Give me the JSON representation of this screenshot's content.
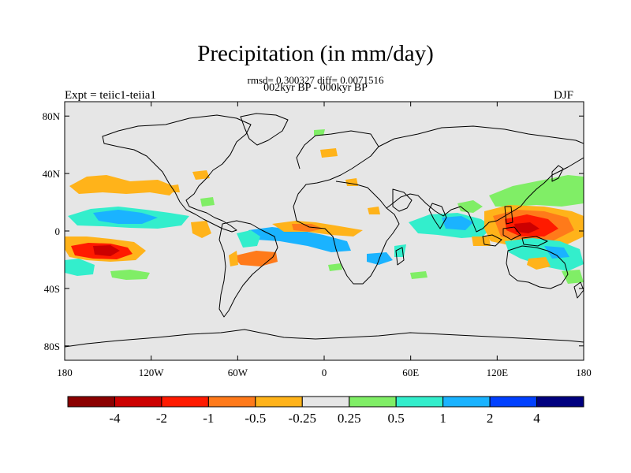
{
  "title": "Precipitation (in mm/day)",
  "stats": "rmsd= 0.300327 diff= 0.0071516",
  "period": "002kyr BP - 000kyr BP",
  "experiment": "Expt = teiic1-teiia1",
  "season": "DJF",
  "lon_ticks": [
    "180",
    "120W",
    "60W",
    "0",
    "60E",
    "120E",
    "180"
  ],
  "lat_ticks": [
    "80N",
    "40N",
    "0",
    "40S",
    "80S"
  ],
  "colorbar": {
    "colors": [
      "#8b0000",
      "#cc0000",
      "#ff1a00",
      "#ff7a1a",
      "#ffb31a",
      "#e6e6e6",
      "#80ee66",
      "#33eecc",
      "#1ab3ff",
      "#0040ff",
      "#00007f"
    ],
    "labels": [
      "-4",
      "-2",
      "-1",
      "-0.5",
      "-0.25",
      "0.25",
      "0.5",
      "1",
      "2",
      "4"
    ]
  },
  "colors": {
    "background": "#e6e6e6",
    "coast": "#000000"
  }
}
